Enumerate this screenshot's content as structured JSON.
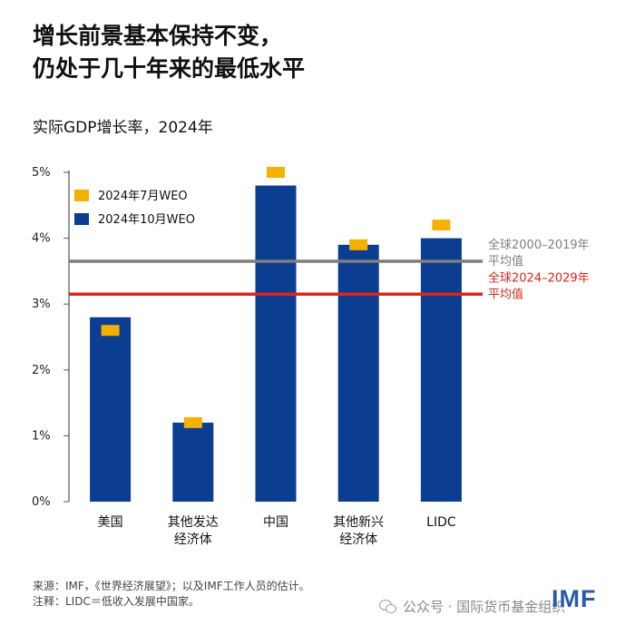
{
  "title_line1": "增长前景基本保持不变，",
  "title_line2": "仍处于几十年来的最低水平",
  "subtitle": "实际GDP增长率，2024年",
  "chart_data": {
    "type": "bar",
    "title": "实际GDP增长率，2024年",
    "xlabel": "",
    "ylabel": "",
    "ylim": [
      0,
      5
    ],
    "y_ticks": [
      "0%",
      "1%",
      "2%",
      "3%",
      "4%",
      "5%"
    ],
    "y_tick_values": [
      0,
      1,
      2,
      3,
      4,
      5
    ],
    "categories": [
      [
        "美国"
      ],
      [
        "其他发达",
        "经济体"
      ],
      [
        "中国"
      ],
      [
        "其他新兴",
        "经济体"
      ],
      [
        "LIDC"
      ]
    ],
    "series": [
      {
        "name": "2024年10月WEO",
        "kind": "bar",
        "color": "#0b3d91",
        "values": [
          2.8,
          1.2,
          4.8,
          3.9,
          4.0
        ]
      },
      {
        "name": "2024年7月WEO",
        "kind": "marker",
        "color": "#f5b100",
        "values": [
          2.6,
          1.2,
          5.0,
          3.9,
          4.2
        ]
      }
    ],
    "reference_lines": [
      {
        "label_lines": [
          "全球2000–2019年",
          "平均值"
        ],
        "value": 3.65,
        "color": "#7f7f7f"
      },
      {
        "label_lines": [
          "全球2024–2029年",
          "平均值"
        ],
        "value": 3.15,
        "color": "#d7281e"
      }
    ],
    "legend": {
      "position": "top-left",
      "entries": [
        "2024年7月WEO",
        "2024年10月WEO"
      ]
    }
  },
  "footer": {
    "source": "来源：IMF，《世界经济展望》；以及IMF工作人员的估计。",
    "note": "注释：LIDC＝低收入发展中国家。"
  },
  "watermark": "公众号 · 国际货币基金组织",
  "logo": "IMF"
}
